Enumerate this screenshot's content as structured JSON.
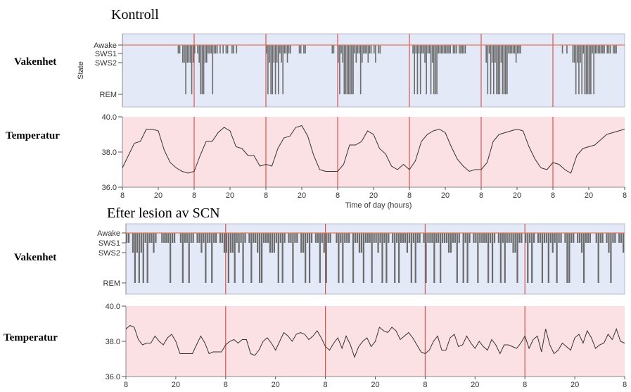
{
  "chart_data": [
    {
      "type": "bar",
      "panel": "top-state",
      "title": "Kontroll",
      "row_label": "Vakenhet",
      "ylabel": "State",
      "y_categories": [
        "Awake",
        "SWS1",
        "SWS2",
        "REM"
      ],
      "xlim_hours": [
        0,
        168
      ],
      "x_tick_labels": [
        "8",
        "20",
        "8",
        "20",
        "8",
        "20",
        "8",
        "20",
        "8",
        "20",
        "8",
        "20",
        "8",
        "20",
        "8"
      ],
      "epoch_hours": 0.5,
      "episodes": [
        {
          "start": 18.5,
          "states": [
            1,
            1,
            0,
            2,
            2,
            3,
            2,
            2,
            2,
            3,
            2,
            1,
            0,
            1,
            2,
            3,
            3,
            3,
            2,
            2,
            1,
            1,
            1,
            3,
            1,
            1,
            1,
            0,
            1,
            0,
            1,
            0,
            1,
            1,
            0,
            0,
            1,
            1,
            0,
            1
          ]
        },
        {
          "start": 48,
          "states": [
            1,
            3,
            2,
            3,
            3,
            2,
            3,
            2,
            3,
            1,
            2,
            3,
            1,
            1,
            2,
            1,
            1,
            0,
            0,
            0,
            0,
            0,
            1,
            1,
            0,
            1,
            1
          ]
        },
        {
          "start": 70,
          "states": [
            1,
            1,
            0,
            0,
            2,
            3,
            1,
            2,
            3,
            3,
            3,
            3,
            3,
            3,
            3,
            1,
            2,
            1,
            1,
            3,
            2,
            1,
            1,
            1,
            2,
            1,
            1,
            0,
            1,
            2,
            0,
            1,
            1
          ]
        },
        {
          "start": 97,
          "states": [
            1,
            3,
            1,
            3,
            1,
            3,
            1,
            1,
            2,
            3,
            1,
            1,
            3,
            2,
            3,
            3,
            3,
            1,
            1,
            1,
            1,
            1,
            1,
            1,
            1,
            1,
            0,
            1,
            1,
            1,
            0,
            1,
            1,
            1,
            1,
            1
          ]
        },
        {
          "start": 121.5,
          "states": [
            2,
            3,
            1,
            3,
            2,
            3,
            2,
            3,
            3,
            3,
            2,
            3,
            3,
            3,
            3,
            1,
            1,
            1,
            1,
            1,
            2,
            1,
            1,
            1
          ]
        },
        {
          "start": 147,
          "states": [
            1,
            0,
            0,
            1,
            0,
            0,
            0,
            2,
            2,
            3,
            2,
            3,
            2,
            3,
            1,
            3,
            3,
            3,
            3,
            3,
            1,
            3,
            1,
            1,
            1,
            1,
            1,
            1,
            1,
            0,
            1,
            1,
            1,
            0,
            1,
            1,
            1
          ]
        }
      ]
    },
    {
      "type": "line",
      "panel": "top-temperature",
      "row_label": "Temperatur",
      "xlabel": "Time of day (hours)",
      "ylim": [
        36.0,
        40.0
      ],
      "y_tick_labels": [
        "40.0",
        "38.0",
        "36.0"
      ],
      "xlim_hours": [
        0,
        168
      ],
      "x_tick_labels": [
        "8",
        "20",
        "8",
        "20",
        "8",
        "20",
        "8",
        "20",
        "8",
        "20",
        "8",
        "20",
        "8",
        "20",
        "8"
      ],
      "sample_interval_hours": 2,
      "values": [
        37.1,
        37.8,
        38.5,
        38.6,
        39.3,
        39.3,
        39.2,
        38.1,
        37.4,
        37.1,
        36.9,
        36.8,
        36.9,
        37.8,
        38.6,
        38.6,
        39.1,
        39.4,
        39.2,
        38.3,
        38.2,
        37.8,
        37.8,
        37.2,
        37.3,
        37.2,
        38.2,
        38.8,
        38.9,
        39.4,
        39.5,
        38.9,
        37.8,
        37.0,
        36.9,
        36.9,
        36.9,
        37.3,
        38.4,
        38.4,
        38.6,
        39.2,
        39.0,
        38.2,
        37.9,
        37.2,
        37.0,
        37.3,
        37.0,
        37.5,
        38.6,
        39.0,
        39.2,
        39.3,
        39.1,
        38.3,
        37.6,
        37.2,
        36.9,
        37.0,
        37.0,
        37.4,
        38.6,
        39.0,
        39.1,
        39.2,
        39.3,
        39.2,
        38.3,
        37.6,
        37.1,
        37.0,
        37.4,
        37.3,
        37.0,
        36.8,
        37.8,
        38.2,
        38.3,
        38.4,
        38.7,
        39.0,
        39.1,
        39.2,
        39.3
      ]
    },
    {
      "type": "bar",
      "panel": "bottom-state",
      "title": "Efter lesion av SCN",
      "row_label": "Vakenhet",
      "y_categories": [
        "Awake",
        "SWS1",
        "SWS2",
        "REM"
      ],
      "xlim_hours": [
        0,
        120
      ],
      "x_tick_labels": [
        "8",
        "20",
        "8",
        "20",
        "8",
        "20",
        "8",
        "20",
        "8",
        "20",
        "8"
      ],
      "epoch_hours": 0.5,
      "episodes": [
        {
          "start": 0,
          "states": [
            1,
            1,
            0,
            2,
            3,
            2,
            3,
            2,
            3,
            1,
            3,
            1,
            1,
            2,
            1,
            0,
            0,
            1,
            1,
            1,
            1,
            3,
            1,
            1,
            0,
            0,
            1,
            3,
            1,
            1,
            3,
            1,
            1,
            0,
            1,
            1,
            2,
            1,
            3,
            1,
            1,
            3,
            1,
            1,
            0,
            1,
            1,
            2,
            2,
            3,
            2,
            2,
            3,
            1,
            2,
            1,
            3,
            1,
            0,
            1,
            3,
            1,
            1,
            2,
            3,
            3,
            1,
            1,
            1,
            2,
            2,
            2
          ]
        },
        {
          "start": 36,
          "states": [
            1,
            3,
            1,
            3,
            1,
            0,
            1,
            1,
            3,
            1,
            1,
            0,
            2,
            2,
            3,
            1,
            3,
            1,
            0,
            1,
            1,
            3,
            1,
            2,
            3,
            1,
            1,
            0,
            0,
            1,
            3,
            1,
            3,
            1,
            1,
            1,
            0,
            3,
            1,
            1,
            2,
            2,
            3,
            1,
            1,
            1,
            3,
            1,
            1,
            2,
            1,
            3,
            1,
            3,
            1,
            0,
            1,
            3,
            1,
            3,
            1,
            1,
            1,
            2,
            1,
            3,
            1,
            3,
            1,
            1,
            0,
            1,
            3,
            1,
            1,
            1,
            3,
            1,
            1,
            3,
            1,
            1,
            1,
            2,
            2,
            1,
            1,
            3,
            1,
            0,
            3,
            1,
            3,
            1,
            0,
            1,
            1,
            3,
            1,
            1
          ]
        },
        {
          "start": 86,
          "states": [
            1,
            1,
            3,
            1,
            3,
            1,
            0,
            1,
            3,
            1,
            3,
            1,
            1,
            1,
            2,
            2,
            3,
            1,
            1,
            0,
            1,
            3,
            1,
            3,
            1,
            0,
            1,
            1,
            3,
            1,
            1,
            3,
            1,
            2,
            1,
            3,
            1,
            1,
            0,
            1,
            3,
            3,
            1,
            1,
            0,
            1,
            1,
            2,
            3,
            1,
            1,
            1,
            0,
            0,
            1,
            3,
            1,
            1,
            0,
            1,
            2,
            3,
            1,
            1,
            0,
            1,
            1,
            2
          ]
        }
      ]
    },
    {
      "type": "line",
      "panel": "bottom-temperature",
      "row_label": "Temperatur",
      "ylim": [
        36.0,
        40.0
      ],
      "y_tick_labels": [
        "40.0",
        "38.0",
        "36.0"
      ],
      "xlim_hours": [
        0,
        120
      ],
      "x_tick_labels": [
        "8",
        "20",
        "8",
        "20",
        "8",
        "20",
        "8",
        "20",
        "8",
        "20",
        "8"
      ],
      "sample_interval_hours": 1,
      "values": [
        38.7,
        38.9,
        38.8,
        38.1,
        37.8,
        37.9,
        37.9,
        38.3,
        38.0,
        37.8,
        38.2,
        38.4,
        38.0,
        37.3,
        37.3,
        37.3,
        37.3,
        37.8,
        38.3,
        37.9,
        37.3,
        37.4,
        37.4,
        37.4,
        37.8,
        38.0,
        38.1,
        37.9,
        38.1,
        38.1,
        37.3,
        37.2,
        37.5,
        38.0,
        38.2,
        37.9,
        37.5,
        38.0,
        38.5,
        38.3,
        38.0,
        38.4,
        38.5,
        38.4,
        38.1,
        38.3,
        38.6,
        38.2,
        37.7,
        37.5,
        37.9,
        38.2,
        37.6,
        38.3,
        37.8,
        37.1,
        37.7,
        38.0,
        38.2,
        37.7,
        38.0,
        38.8,
        38.6,
        38.5,
        38.8,
        38.6,
        38.1,
        38.3,
        38.5,
        38.2,
        37.8,
        37.4,
        37.3,
        37.5,
        38.0,
        38.3,
        37.5,
        37.5,
        38.2,
        38.4,
        37.7,
        37.8,
        38.3,
        37.9,
        37.6,
        38.0,
        37.7,
        37.5,
        38.1,
        37.8,
        37.3,
        37.8,
        37.8,
        37.7,
        37.6,
        37.9,
        38.3,
        37.6,
        38.1,
        38.3,
        37.4,
        38.7,
        37.8,
        37.3,
        37.5,
        37.9,
        37.7,
        37.5,
        38.2,
        38.4,
        37.9,
        38.6,
        38.2,
        37.6,
        37.8,
        37.9,
        38.4,
        38.1,
        38.7,
        38.0,
        37.9
      ]
    }
  ],
  "colors": {
    "state_background": "#e3e9f6",
    "temp_background": "#fbe1e3",
    "day_boundary": "#d9534f",
    "awake_line": "#e8785a",
    "bars": "#6b6b6b",
    "temp_line": "#333333"
  }
}
